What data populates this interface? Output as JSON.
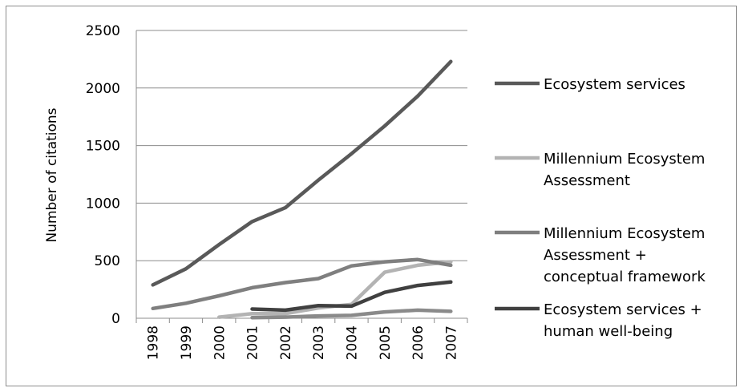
{
  "chart_data": {
    "type": "line",
    "title": "",
    "xlabel": "",
    "ylabel": "Number of citations",
    "categories": [
      "1998",
      "1999",
      "2000",
      "2001",
      "2002",
      "2003",
      "2004",
      "2005",
      "2006",
      "2007"
    ],
    "ylim": [
      0,
      2500
    ],
    "yticks": [
      "0",
      "500",
      "1000",
      "1500",
      "2000",
      "2500"
    ],
    "grid": "horizontal",
    "legend_position": "right",
    "series": [
      {
        "name": "Ecosystem services",
        "color": "#595959",
        "values": [
          290,
          430,
          640,
          840,
          960,
          1200,
          1430,
          1670,
          1930,
          2230
        ]
      },
      {
        "name": "Millennium Ecosystem Assessment",
        "color": "#b3b3b3",
        "values": [
          null,
          null,
          10,
          40,
          40,
          90,
          120,
          400,
          460,
          490
        ]
      },
      {
        "name": "Millennium Ecosystem Assessment + conceptual framework",
        "color": "#7f7f7f",
        "values": [
          85,
          130,
          195,
          265,
          310,
          345,
          455,
          490,
          510,
          460
        ]
      },
      {
        "name": "Ecosystem services + human well-being",
        "color": "#404040",
        "values": [
          null,
          null,
          null,
          80,
          70,
          110,
          105,
          225,
          285,
          315
        ]
      },
      {
        "name": "",
        "color": "#8a8a8a",
        "values": [
          null,
          null,
          null,
          5,
          10,
          20,
          25,
          55,
          70,
          60
        ]
      }
    ],
    "legend_lines": [
      [
        "Ecosystem services"
      ],
      [
        "Millennium Ecosystem",
        "Assessment"
      ],
      [
        "Millennium Ecosystem",
        "Assessment +",
        "conceptual framework"
      ],
      [
        "Ecosystem services +",
        "human well-being"
      ]
    ]
  }
}
